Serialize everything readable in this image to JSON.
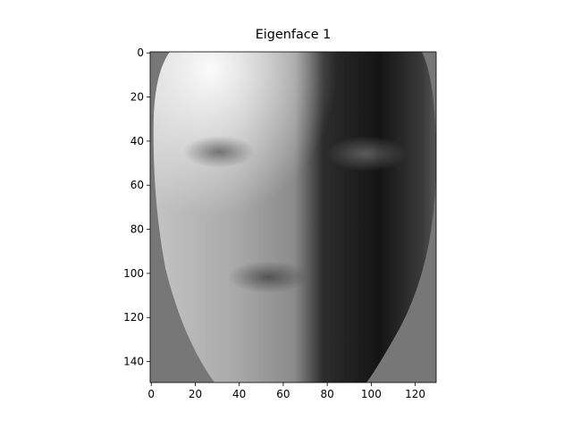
{
  "chart_data": {
    "type": "image",
    "title": "Eigenface 1",
    "xlim": [
      -0.5,
      129.5
    ],
    "ylim": [
      149.5,
      -0.5
    ],
    "xticks": [
      0,
      20,
      40,
      60,
      80,
      100,
      120
    ],
    "yticks": [
      0,
      20,
      40,
      60,
      80,
      100,
      120,
      140
    ],
    "colormap": "gray"
  }
}
